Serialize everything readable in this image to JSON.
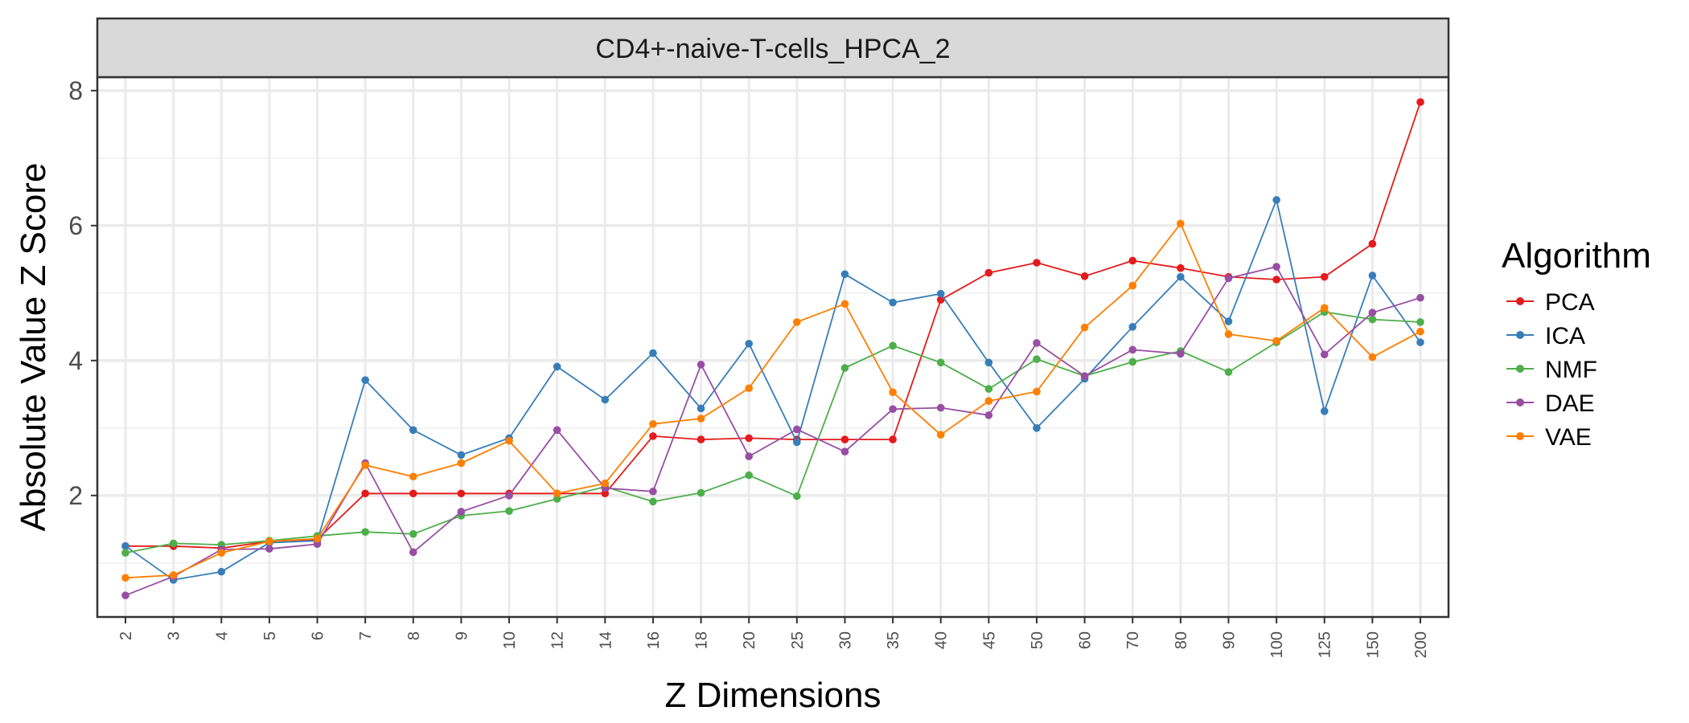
{
  "chart_data": {
    "type": "line",
    "strip_title": "CD4+-naive-T-cells_HPCA_2",
    "xlabel": "Z Dimensions",
    "ylabel": "Absolute Value Z Score",
    "ylim": [
      0.2,
      8.2
    ],
    "y_ticks": [
      "2",
      "4",
      "6",
      "8"
    ],
    "y_tick_values": [
      2,
      4,
      6,
      8
    ],
    "grid": true,
    "legend_position": "right",
    "legend_title": "Algorithm",
    "categories": [
      "2",
      "3",
      "4",
      "5",
      "6",
      "7",
      "8",
      "9",
      "10",
      "12",
      "14",
      "16",
      "18",
      "20",
      "25",
      "30",
      "35",
      "40",
      "45",
      "50",
      "60",
      "70",
      "80",
      "90",
      "100",
      "125",
      "150",
      "200"
    ],
    "series": [
      {
        "name": "PCA",
        "color": "#e41a1c",
        "values": [
          1.25,
          1.25,
          1.22,
          1.32,
          1.35,
          2.03,
          2.03,
          2.03,
          2.03,
          2.03,
          2.03,
          2.88,
          2.83,
          2.85,
          2.83,
          2.83,
          2.83,
          4.9,
          5.3,
          5.45,
          5.25,
          5.48,
          5.37,
          5.24,
          5.2,
          5.24,
          5.73,
          7.83
        ]
      },
      {
        "name": "ICA",
        "color": "#377eb8",
        "values": [
          1.25,
          0.75,
          0.87,
          1.3,
          1.33,
          3.71,
          2.97,
          2.6,
          2.85,
          3.91,
          3.42,
          4.11,
          3.29,
          4.25,
          2.79,
          5.28,
          4.86,
          4.99,
          3.97,
          3.0,
          3.73,
          4.5,
          5.24,
          4.58,
          6.38,
          3.25,
          5.26,
          4.27
        ]
      },
      {
        "name": "NMF",
        "color": "#4daf4a",
        "values": [
          1.15,
          1.29,
          1.27,
          1.33,
          1.4,
          1.46,
          1.43,
          1.7,
          1.77,
          1.95,
          2.13,
          1.91,
          2.04,
          2.3,
          1.99,
          3.89,
          4.22,
          3.97,
          3.58,
          4.02,
          3.77,
          3.98,
          4.14,
          3.83,
          4.27,
          4.72,
          4.61,
          4.57
        ]
      },
      {
        "name": "DAE",
        "color": "#984ea3",
        "values": [
          0.52,
          0.8,
          1.2,
          1.21,
          1.28,
          2.48,
          1.16,
          1.76,
          2.0,
          2.97,
          2.11,
          2.06,
          3.94,
          2.58,
          2.98,
          2.65,
          3.28,
          3.3,
          3.19,
          4.26,
          3.77,
          4.16,
          4.1,
          5.22,
          5.39,
          4.09,
          4.71,
          4.93
        ]
      },
      {
        "name": "VAE",
        "color": "#ff7f00",
        "values": [
          0.78,
          0.82,
          1.15,
          1.32,
          1.36,
          2.45,
          2.28,
          2.48,
          2.81,
          2.03,
          2.18,
          3.06,
          3.14,
          3.59,
          4.57,
          4.84,
          3.53,
          2.9,
          3.4,
          3.54,
          4.49,
          5.11,
          6.03,
          4.39,
          4.29,
          4.78,
          4.05,
          4.43
        ]
      }
    ]
  }
}
